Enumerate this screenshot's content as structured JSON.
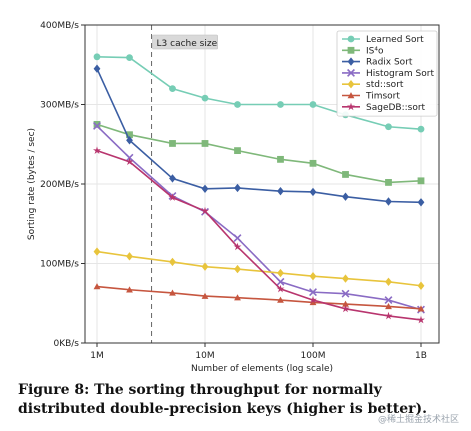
{
  "chart_data": {
    "type": "line",
    "x_scale": "log",
    "x": [
      1000000,
      2000000,
      5000000,
      10000000,
      20000000,
      50000000,
      100000000,
      200000000,
      500000000,
      1000000000
    ],
    "x_ticks": [
      {
        "value": 1000000,
        "label": "1M"
      },
      {
        "value": 10000000,
        "label": "10M"
      },
      {
        "value": 100000000,
        "label": "100M"
      },
      {
        "value": 1000000000,
        "label": "1B"
      }
    ],
    "y_ticks": [
      {
        "value": 0,
        "label": "0KB/s"
      },
      {
        "value": 100,
        "label": "100MB/s"
      },
      {
        "value": 200,
        "label": "200MB/s"
      },
      {
        "value": 300,
        "label": "300MB/s"
      },
      {
        "value": 400,
        "label": "400MB/s"
      }
    ],
    "ylim": [
      0,
      400
    ],
    "xlabel": "Number of elements (log scale)",
    "ylabel": "Sorting rate (bytes / sec)",
    "grid": true,
    "legend_position": "top-right",
    "annotation": {
      "label": "L3 cache size",
      "x": 3200000
    },
    "series": [
      {
        "name": "Learned Sort",
        "color": "#76cdb5",
        "marker": "circle",
        "values": [
          360,
          359,
          320,
          308,
          300,
          300,
          300,
          287,
          272,
          269
        ]
      },
      {
        "name": "IS⁴o",
        "color": "#7fb87a",
        "marker": "square",
        "values": [
          275,
          262,
          251,
          251,
          242,
          231,
          226,
          212,
          202,
          204
        ]
      },
      {
        "name": "Radix Sort",
        "color": "#3b5ea3",
        "marker": "diamond",
        "values": [
          345,
          255,
          207,
          194,
          195,
          191,
          190,
          184,
          178,
          177
        ]
      },
      {
        "name": "Histogram Sort",
        "color": "#8a6bc4",
        "marker": "x",
        "values": [
          273,
          233,
          185,
          165,
          132,
          77,
          64,
          62,
          54,
          42
        ]
      },
      {
        "name": "std::sort",
        "color": "#e8c43c",
        "marker": "diamond",
        "values": [
          115,
          109,
          102,
          96,
          93,
          88,
          84,
          81,
          77,
          72
        ]
      },
      {
        "name": "Timsort",
        "color": "#c6563f",
        "marker": "triangle",
        "values": [
          71,
          67,
          63,
          59,
          57,
          54,
          51,
          49,
          46,
          43
        ]
      },
      {
        "name": "SageDB::sort",
        "color": "#b8356e",
        "marker": "star",
        "values": [
          242,
          228,
          183,
          166,
          121,
          68,
          54,
          43,
          34,
          29
        ]
      }
    ]
  },
  "caption": "Figure 8: The sorting throughput for normally distributed double-precision keys (higher is better).",
  "watermark": "@稀土掘金技术社区"
}
